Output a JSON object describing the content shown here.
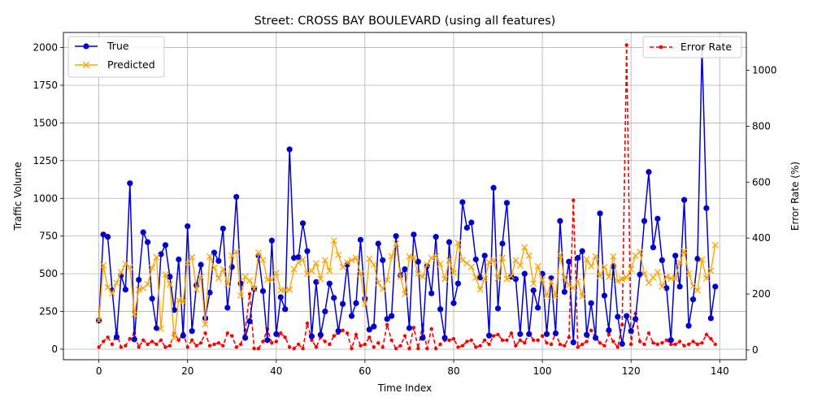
{
  "chart_data": {
    "type": "line",
    "title": "Street: CROSS BAY BOULEVARD (using all features)",
    "xlabel": "Time Index",
    "ylabel": "Traffic Volume",
    "y2label": "Error Rate (%)",
    "xlim": [
      -8,
      146
    ],
    "ylim": [
      -70,
      2100
    ],
    "y2lim": [
      -35,
      1135
    ],
    "xticks": [
      0,
      20,
      40,
      60,
      80,
      100,
      120,
      140
    ],
    "yticks": [
      0,
      250,
      500,
      750,
      1000,
      1250,
      1500,
      1750,
      2000
    ],
    "y2ticks": [
      0,
      200,
      400,
      600,
      800,
      1000
    ],
    "grid": true,
    "legend_left": "upper-left",
    "legend_right": "upper-right",
    "series": [
      {
        "name": "True",
        "axis": "left",
        "color": "#0000cc",
        "marker": "circle",
        "values": [
          190,
          760,
          745,
          390,
          80,
          490,
          395,
          1100,
          65,
          460,
          775,
          710,
          335,
          140,
          630,
          690,
          480,
          260,
          595,
          90,
          815,
          120,
          425,
          560,
          205,
          375,
          640,
          585,
          800,
          275,
          545,
          1010,
          435,
          75,
          185,
          400,
          620,
          385,
          60,
          720,
          100,
          345,
          265,
          1325,
          605,
          610,
          835,
          650,
          85,
          445,
          95,
          250,
          435,
          340,
          120,
          300,
          560,
          220,
          305,
          725,
          335,
          130,
          150,
          700,
          590,
          200,
          220,
          750,
          490,
          530,
          140,
          760,
          580,
          75,
          550,
          370,
          745,
          265,
          75,
          710,
          305,
          435,
          975,
          805,
          840,
          595,
          475,
          620,
          90,
          1070,
          270,
          700,
          970,
          480,
          465,
          100,
          500,
          100,
          390,
          275,
          500,
          100,
          470,
          105,
          850,
          380,
          580,
          45,
          605,
          650,
          95,
          305,
          75,
          900,
          355,
          125,
          550,
          215,
          35,
          220,
          120,
          200,
          495,
          850,
          1175,
          675,
          865,
          590,
          405,
          60,
          620,
          415,
          990,
          155,
          330,
          600,
          2000,
          935,
          205,
          415
        ]
      },
      {
        "name": "Predicted",
        "axis": "left",
        "color": "#ffa500",
        "marker": "x",
        "values": [
          190,
          555,
          410,
          370,
          440,
          510,
          565,
          545,
          230,
          395,
          405,
          430,
          540,
          610,
          135,
          495,
          430,
          75,
          325,
          315,
          570,
          610,
          395,
          480,
          165,
          615,
          540,
          470,
          530,
          430,
          620,
          645,
          355,
          480,
          455,
          400,
          640,
          590,
          460,
          460,
          505,
          390,
          390,
          395,
          530,
          575,
          595,
          500,
          520,
          570,
          465,
          590,
          520,
          720,
          625,
          545,
          575,
          590,
          605,
          500,
          300,
          600,
          560,
          440,
          400,
          460,
          615,
          700,
          480,
          365,
          615,
          605,
          500,
          480,
          560,
          605,
          615,
          565,
          465,
          590,
          505,
          705,
          590,
          570,
          545,
          475,
          395,
          465,
          575,
          590,
          470,
          605,
          465,
          485,
          590,
          555,
          675,
          620,
          435,
          550,
          460,
          355,
          450,
          350,
          625,
          475,
          425,
          405,
          450,
          350,
          595,
          550,
          615,
          485,
          545,
          480,
          615,
          450,
          465,
          475,
          530,
          620,
          645,
          500,
          440,
          475,
          510,
          415,
          480,
          470,
          470,
          575,
          650,
          500,
          420,
          390,
          595,
          470,
          520,
          690
        ]
      },
      {
        "name": "Error Rate",
        "axis": "right",
        "color": "#ff0000",
        "marker": "dot",
        "dashed": true,
        "values": [
          10,
          30,
          45,
          20,
          60,
          10,
          15,
          40,
          60,
          10,
          35,
          20,
          30,
          20,
          35,
          10,
          15,
          60,
          35,
          60,
          10,
          35,
          15,
          25,
          60,
          15,
          20,
          25,
          15,
          60,
          50,
          10,
          20,
          70,
          200,
          5,
          5,
          30,
          75,
          25,
          30,
          60,
          45,
          10,
          5,
          20,
          5,
          95,
          35,
          10,
          45,
          30,
          20,
          50,
          60,
          70,
          60,
          5,
          55,
          15,
          20,
          45,
          10,
          25,
          10,
          90,
          35,
          5,
          15,
          50,
          5,
          80,
          5,
          90,
          5,
          75,
          5,
          20,
          35,
          35,
          40,
          10,
          15,
          30,
          35,
          10,
          15,
          35,
          20,
          50,
          55,
          35,
          35,
          60,
          15,
          35,
          25,
          60,
          35,
          35,
          50,
          25,
          20,
          60,
          20,
          15,
          45,
          535,
          10,
          20,
          30,
          70,
          45,
          25,
          15,
          55,
          30,
          10,
          90,
          1090,
          20,
          130,
          30,
          20,
          60,
          25,
          20,
          25,
          35,
          20,
          20,
          30,
          15,
          20,
          30,
          20,
          25,
          55,
          40,
          20
        ]
      }
    ]
  }
}
